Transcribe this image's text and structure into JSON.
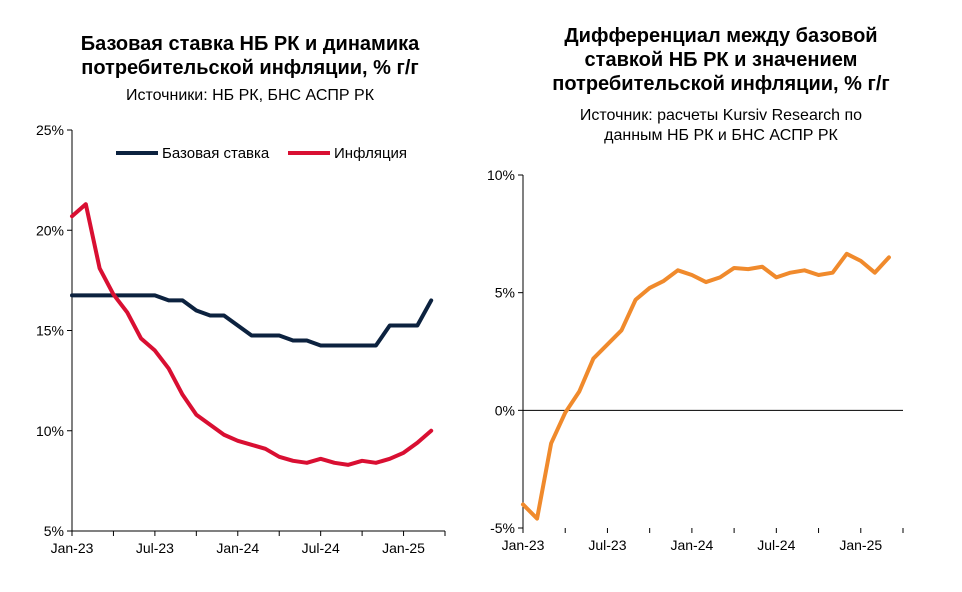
{
  "colors": {
    "base_rate": "#0c223f",
    "inflation": "#d90f32",
    "differential": "#f08a2c"
  },
  "chart_data": [
    {
      "type": "line",
      "title_line1": "Базовая ставка НБ РК и динамика",
      "title_line2": "потребительской инфляции, % г/г",
      "subtitle": "Источники: НБ РК, БНС АСПР РК",
      "x": [
        "2023-01",
        "2023-02",
        "2023-03",
        "2023-04",
        "2023-05",
        "2023-06",
        "2023-07",
        "2023-08",
        "2023-09",
        "2023-10",
        "2023-11",
        "2023-12",
        "2024-01",
        "2024-02",
        "2024-03",
        "2024-04",
        "2024-05",
        "2024-06",
        "2024-07",
        "2024-08",
        "2024-09",
        "2024-10",
        "2024-11",
        "2024-12",
        "2025-01",
        "2025-02",
        "2025-03"
      ],
      "x_tick_labels": [
        "Jan-23",
        "Jul-23",
        "Jan-24",
        "Jul-24",
        "Jan-25"
      ],
      "y_tick_labels": [
        "5%",
        "10%",
        "15%",
        "20%",
        "25%"
      ],
      "ylim": [
        5,
        25
      ],
      "legend_position": "top",
      "series": [
        {
          "name": "Базовая ставка",
          "color_key": "base_rate",
          "values": [
            16.75,
            16.75,
            16.75,
            16.75,
            16.75,
            16.75,
            16.75,
            16.5,
            16.5,
            16.0,
            15.75,
            15.75,
            15.25,
            14.75,
            14.75,
            14.75,
            14.5,
            14.5,
            14.25,
            14.25,
            14.25,
            14.25,
            14.25,
            15.25,
            15.25,
            15.25,
            16.5
          ]
        },
        {
          "name": "Инфляция",
          "color_key": "inflation",
          "values": [
            20.7,
            21.3,
            18.1,
            16.8,
            15.9,
            14.6,
            14.0,
            13.1,
            11.8,
            10.8,
            10.3,
            9.8,
            9.5,
            9.3,
            9.1,
            8.7,
            8.5,
            8.4,
            8.6,
            8.4,
            8.3,
            8.5,
            8.4,
            8.6,
            8.9,
            9.4,
            10.0
          ]
        }
      ]
    },
    {
      "type": "line",
      "title_line1": "Дифференциал между базовой",
      "title_line2": "ставкой НБ РК и значением",
      "title_line3": "потребительской инфляции, % г/г",
      "subtitle_line1": "Источник: расчеты Kursiv Research по",
      "subtitle_line2": "данным НБ РК и БНС АСПР РК",
      "x": [
        "2023-01",
        "2023-02",
        "2023-03",
        "2023-04",
        "2023-05",
        "2023-06",
        "2023-07",
        "2023-08",
        "2023-09",
        "2023-10",
        "2023-11",
        "2023-12",
        "2024-01",
        "2024-02",
        "2024-03",
        "2024-04",
        "2024-05",
        "2024-06",
        "2024-07",
        "2024-08",
        "2024-09",
        "2024-10",
        "2024-11",
        "2024-12",
        "2025-01",
        "2025-02",
        "2025-03"
      ],
      "x_tick_labels": [
        "Jan-23",
        "Jul-23",
        "Jan-24",
        "Jul-24",
        "Jan-25"
      ],
      "y_tick_labels": [
        "-5%",
        "0%",
        "5%",
        "10%"
      ],
      "ylim": [
        -5,
        10
      ],
      "series": [
        {
          "color_key": "differential",
          "values": [
            -4.0,
            -4.6,
            -1.4,
            -0.1,
            0.8,
            2.2,
            2.8,
            3.4,
            4.7,
            5.2,
            5.5,
            5.95,
            5.75,
            5.45,
            5.65,
            6.05,
            6.0,
            6.1,
            5.65,
            5.85,
            5.95,
            5.75,
            5.85,
            6.65,
            6.35,
            5.85,
            6.5
          ]
        }
      ]
    }
  ]
}
